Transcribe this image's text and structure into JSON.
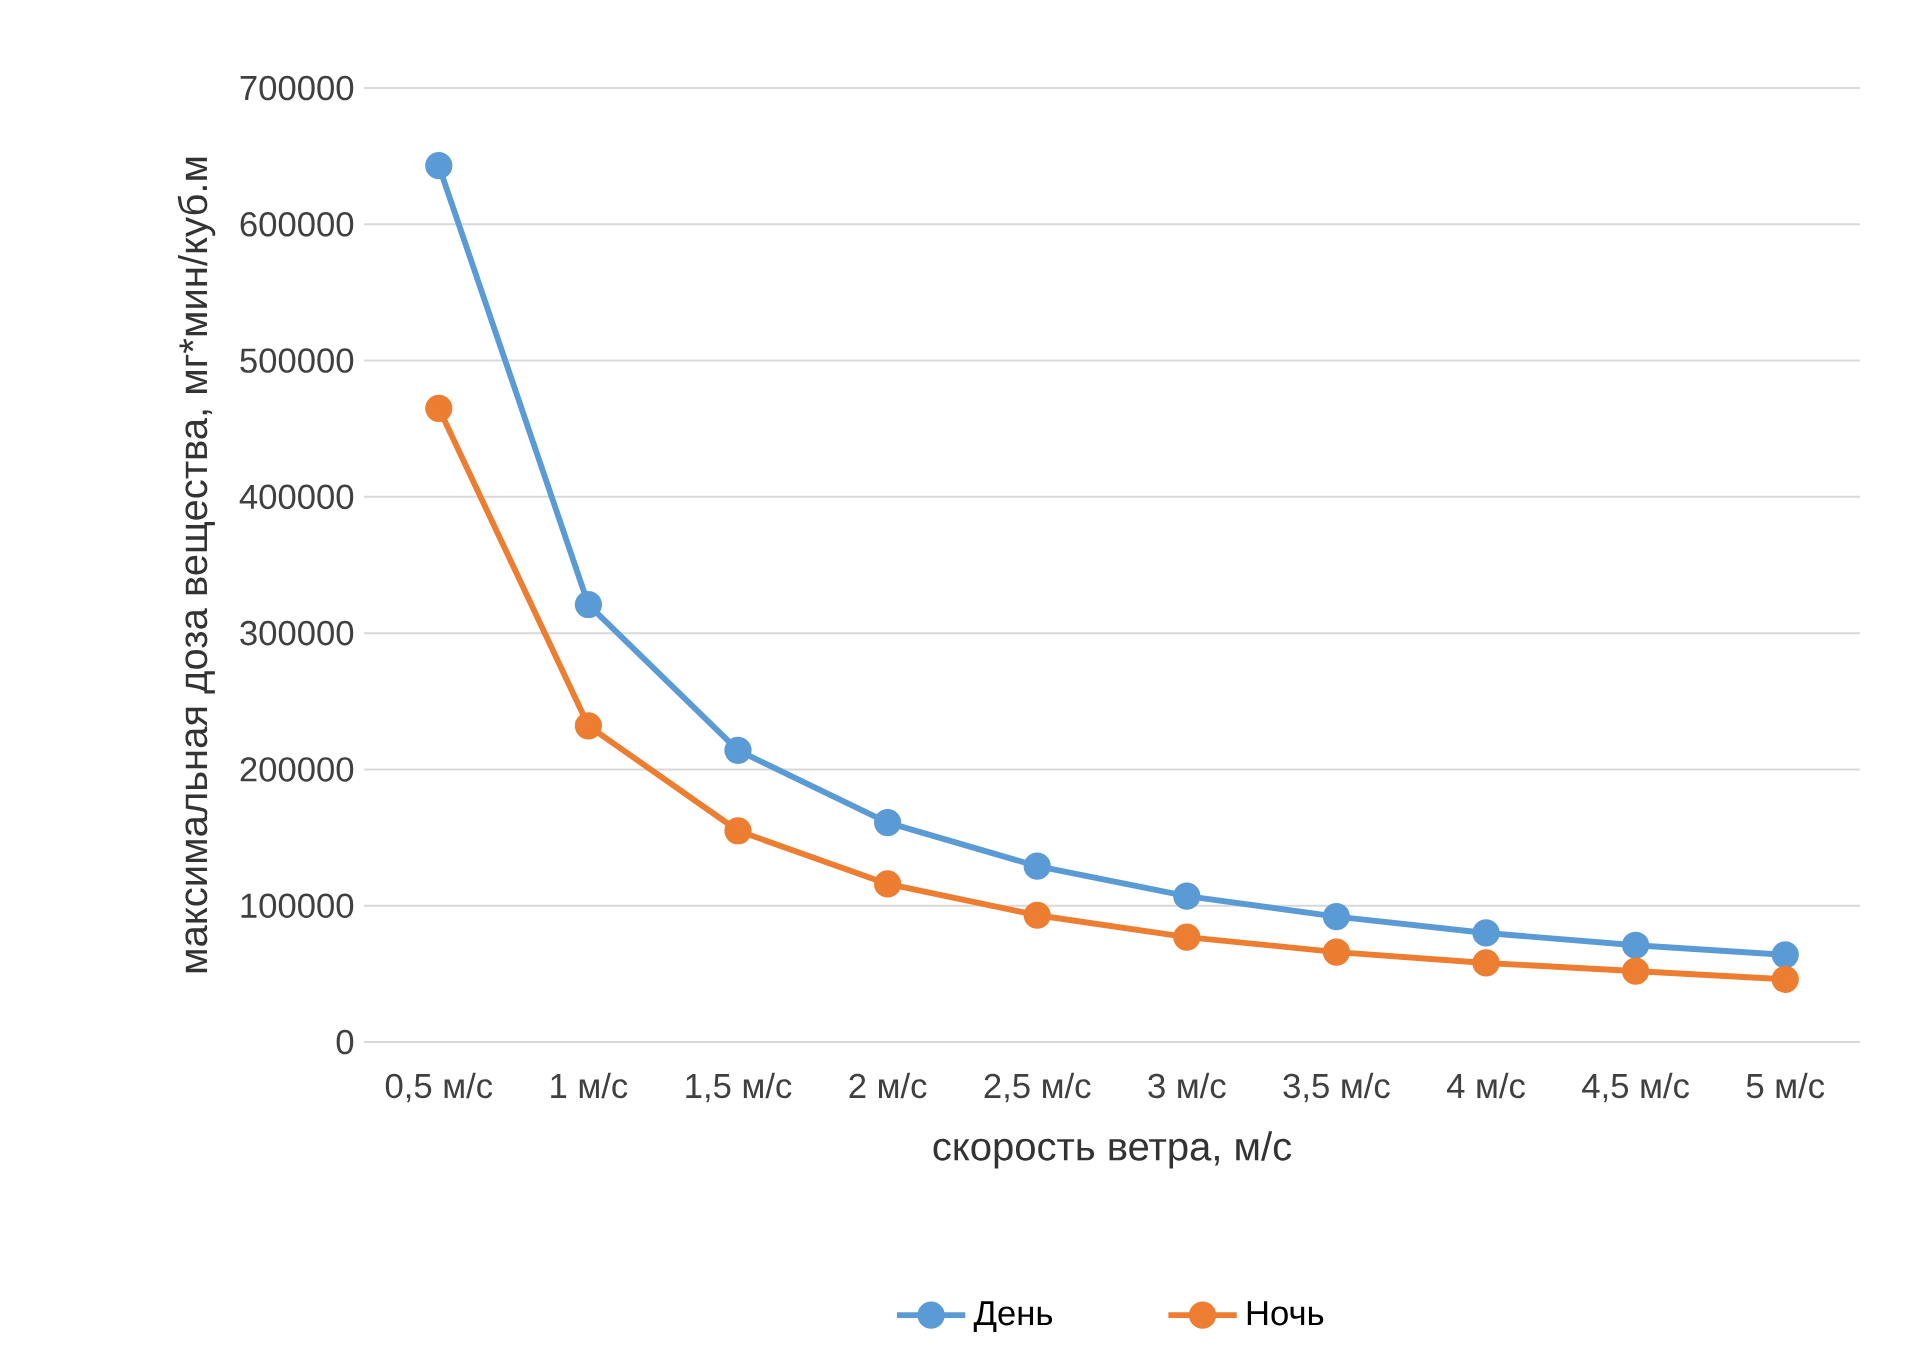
{
  "chart_data": {
    "type": "line",
    "xlabel": "скорость ветра, м/с",
    "ylabel": "максимальная доза вещества, мг*мин/куб.м",
    "categories": [
      "0,5 м/с",
      "1 м/с",
      "1,5 м/с",
      "2 м/с",
      "2,5 м/с",
      "3 м/с",
      "3,5 м/с",
      "4 м/с",
      "4,5 м/с",
      "5 м/с"
    ],
    "series": [
      {
        "name": "День",
        "color": "#5b9bd5",
        "values": [
          643000,
          321000,
          214000,
          161000,
          129000,
          107000,
          92000,
          80000,
          71000,
          64000
        ]
      },
      {
        "name": "Ночь",
        "color": "#ed7d31",
        "values": [
          465000,
          232000,
          155000,
          116000,
          93000,
          77000,
          66000,
          58000,
          52000,
          46000
        ]
      }
    ],
    "ylim": [
      0,
      700000
    ],
    "yticks": [
      0,
      100000,
      200000,
      300000,
      400000,
      500000,
      600000,
      700000
    ],
    "grid": "y",
    "legend": "bottom",
    "marker": "circle",
    "line_style": "solid"
  }
}
